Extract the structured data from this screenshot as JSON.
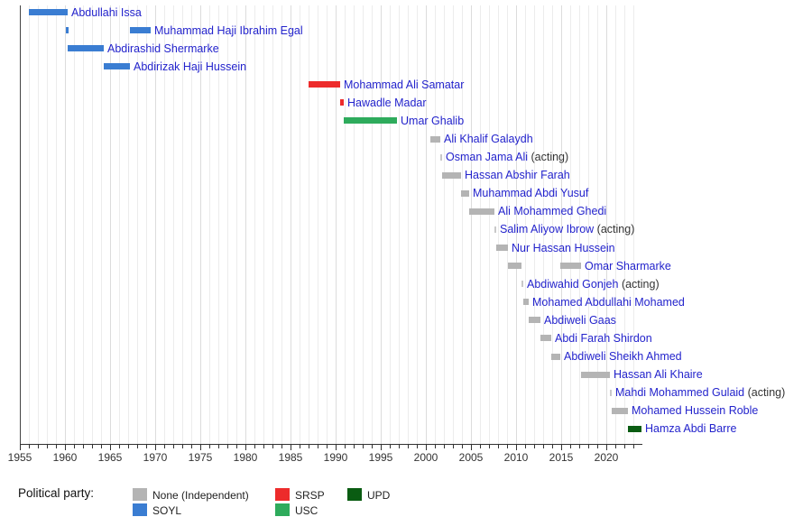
{
  "chart_data": {
    "type": "timeline",
    "description": "Timeline of Prime Ministers of Somalia by political party",
    "axis": {
      "start_year": 1955,
      "end_year": 2023.9,
      "labels": [
        1955,
        1960,
        1965,
        1970,
        1975,
        1980,
        1985,
        1990,
        1995,
        2000,
        2005,
        2010,
        2015,
        2020
      ],
      "minor_tick_interval": 1,
      "major_tick_interval": 5,
      "grid": true
    },
    "acting_suffix": "(acting)",
    "rows": [
      {
        "name": "Abdullahi Issa",
        "party": "SOYL",
        "acting": false,
        "segments": [
          [
            1956.0,
            1960.3
          ]
        ]
      },
      {
        "name": "Muhammad Haji Ibrahim Egal",
        "party": "SOYL",
        "acting": false,
        "segments": [
          [
            1960.1,
            1960.4
          ],
          [
            1967.2,
            1969.5
          ]
        ]
      },
      {
        "name": "Abdirashid Shermarke",
        "party": "SOYL",
        "acting": false,
        "segments": [
          [
            1960.3,
            1964.3
          ]
        ]
      },
      {
        "name": "Abdirizak Haji Hussein",
        "party": "SOYL",
        "acting": false,
        "segments": [
          [
            1964.3,
            1967.2
          ]
        ]
      },
      {
        "name": "Mohammad Ali Samatar",
        "party": "SRSP",
        "acting": false,
        "segments": [
          [
            1987.0,
            1990.5
          ]
        ]
      },
      {
        "name": "Hawadle Madar",
        "party": "SRSP",
        "acting": false,
        "segments": [
          [
            1990.5,
            1990.9
          ]
        ]
      },
      {
        "name": "Umar Ghalib",
        "party": "USC",
        "acting": false,
        "segments": [
          [
            1990.9,
            1996.8
          ]
        ]
      },
      {
        "name": "Ali Khalif Galaydh",
        "party": "None (Independent)",
        "acting": false,
        "segments": [
          [
            2000.5,
            2001.6
          ]
        ]
      },
      {
        "name": "Osman Jama Ali",
        "party": "None (Independent)",
        "acting": true,
        "segments": [
          [
            2001.6,
            2001.8
          ]
        ]
      },
      {
        "name": "Hassan Abshir Farah",
        "party": "None (Independent)",
        "acting": false,
        "segments": [
          [
            2001.8,
            2003.9
          ]
        ]
      },
      {
        "name": "Muhammad Abdi Yusuf",
        "party": "None (Independent)",
        "acting": false,
        "segments": [
          [
            2003.9,
            2004.8
          ]
        ]
      },
      {
        "name": "Ali Mohammed Ghedi",
        "party": "None (Independent)",
        "acting": false,
        "segments": [
          [
            2004.8,
            2007.6
          ]
        ]
      },
      {
        "name": "Salim Aliyow Ibrow",
        "party": "None (Independent)",
        "acting": true,
        "segments": [
          [
            2007.6,
            2007.8
          ]
        ]
      },
      {
        "name": "Nur Hassan Hussein",
        "party": "None (Independent)",
        "acting": false,
        "segments": [
          [
            2007.8,
            2009.1
          ]
        ]
      },
      {
        "name": "Omar Sharmarke",
        "party": "None (Independent)",
        "acting": false,
        "segments": [
          [
            2009.1,
            2010.6
          ],
          [
            2014.9,
            2017.2
          ]
        ]
      },
      {
        "name": "Abdiwahid Gonjeh",
        "party": "None (Independent)",
        "acting": true,
        "segments": [
          [
            2010.6,
            2010.8
          ]
        ]
      },
      {
        "name": "Mohamed Abdullahi Mohamed",
        "party": "None (Independent)",
        "acting": false,
        "segments": [
          [
            2010.8,
            2011.4
          ]
        ]
      },
      {
        "name": "Abdiweli Gaas",
        "party": "None (Independent)",
        "acting": false,
        "segments": [
          [
            2011.4,
            2012.7
          ]
        ]
      },
      {
        "name": "Abdi Farah Shirdon",
        "party": "None (Independent)",
        "acting": false,
        "segments": [
          [
            2012.7,
            2013.9
          ]
        ]
      },
      {
        "name": "Abdiweli Sheikh Ahmed",
        "party": "None (Independent)",
        "acting": false,
        "segments": [
          [
            2013.9,
            2014.9
          ]
        ]
      },
      {
        "name": "Hassan Ali Khaire",
        "party": "None (Independent)",
        "acting": false,
        "segments": [
          [
            2017.2,
            2020.4
          ]
        ]
      },
      {
        "name": "Mahdi Mohammed Gulaid",
        "party": "None (Independent)",
        "acting": true,
        "segments": [
          [
            2020.4,
            2020.6
          ]
        ]
      },
      {
        "name": "Mohamed Hussein Roble",
        "party": "None (Independent)",
        "acting": false,
        "segments": [
          [
            2020.6,
            2022.4
          ]
        ]
      },
      {
        "name": "Hamza Abdi Barre",
        "party": "UPD",
        "acting": false,
        "segments": [
          [
            2022.4,
            2023.9
          ]
        ]
      }
    ],
    "legend": {
      "title": "Political party:",
      "entries": [
        {
          "label": "None (Independent)",
          "color": "#b4b4b4"
        },
        {
          "label": "SOYL",
          "color": "#3a7dd2"
        },
        {
          "label": "SRSP",
          "color": "#ed2b2b"
        },
        {
          "label": "USC",
          "color": "#2eab5c"
        },
        {
          "label": "UPD",
          "color": "#0a5c12"
        }
      ],
      "legend_position": "bottom"
    },
    "colors": {
      "name_link": "#2323cc",
      "acting_text": "#333333",
      "acting_tick": "#c9c9c9",
      "axis": "#333333",
      "grid_minor": "#ececec",
      "grid_major": "#dcdcdc"
    }
  }
}
